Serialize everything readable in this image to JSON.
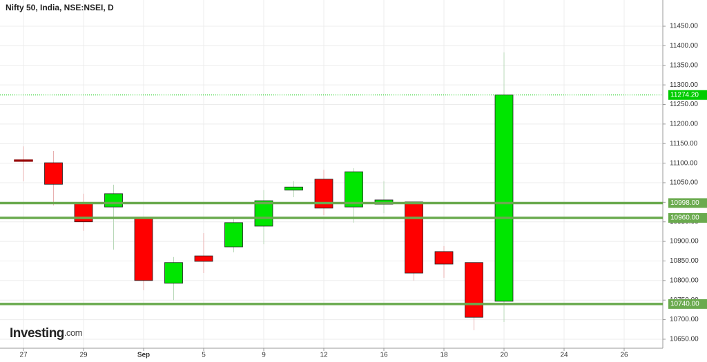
{
  "chart_data": {
    "type": "candlestick",
    "title": "Nifty 50, India, NSE:NSEI, D",
    "logo": "Investing",
    "logo_suffix": ".com",
    "categories": [
      "27",
      null,
      "29",
      null,
      "Sep",
      null,
      "5",
      null,
      "9",
      null,
      "12",
      null,
      "16",
      null,
      "18",
      null,
      "20",
      null,
      "24",
      null,
      "26",
      null
    ],
    "open": [
      11108,
      11101,
      10997,
      10988,
      10962,
      10793,
      10863,
      10886,
      10939,
      11031,
      11059,
      10988,
      10995,
      11001,
      10874,
      10846,
      10747,
      null,
      null,
      null,
      null,
      null
    ],
    "high": [
      11143,
      11131,
      11022,
      11045,
      10962,
      10860,
      10921,
      10957,
      11031,
      11054,
      11083,
      11087,
      11054,
      11001,
      10888,
      10846,
      11383,
      null,
      null,
      null,
      null,
      null
    ],
    "low": [
      11054,
      10992,
      10927,
      10879,
      10775,
      10750,
      10819,
      10872,
      10893,
      11013,
      10967,
      10948,
      10972,
      10800,
      10807,
      10673,
      10694,
      null,
      null,
      null,
      null,
      null
    ],
    "close": [
      11105,
      11046,
      10950,
      11022,
      10800,
      10846,
      10849,
      10948,
      11004,
      11039,
      10985,
      11078,
      11006,
      10819,
      10842,
      10706,
      11274.2,
      null,
      null,
      null,
      null,
      null
    ],
    "up_color": "#00e600",
    "down_color": "#ff0000",
    "levels": [
      10998,
      10960,
      10740
    ],
    "level_labels": [
      "10998.00",
      "10960.00",
      "10740.00"
    ],
    "level_color": "#6aaa4e",
    "last_price": {
      "value": 11274.2,
      "label": "11274.20"
    },
    "last_color": "#00cc00",
    "ylim": [
      10627,
      11517
    ],
    "yticks": [
      {
        "value": 10650,
        "label": "10650.00"
      },
      {
        "value": 10700,
        "label": "10700.00"
      },
      {
        "value": 10750,
        "label": "10750.00"
      },
      {
        "value": 10800,
        "label": "10800.00"
      },
      {
        "value": 10850,
        "label": "10850.00"
      },
      {
        "value": 10900,
        "label": "10900.00"
      },
      {
        "value": 10950,
        "label": "10950.00"
      },
      {
        "value": 11000,
        "label": "11000.00"
      },
      {
        "value": 11050,
        "label": "11050.00"
      },
      {
        "value": 11100,
        "label": "11100.00"
      },
      {
        "value": 11150,
        "label": "11150.00"
      },
      {
        "value": 11200,
        "label": "11200.00"
      },
      {
        "value": 11250,
        "label": "11250.00"
      },
      {
        "value": 11300,
        "label": "11300.00"
      },
      {
        "value": 11350,
        "label": "11350.00"
      },
      {
        "value": 11400,
        "label": "11400.00"
      },
      {
        "value": 11450,
        "label": "11450.00"
      }
    ],
    "grid": true
  }
}
